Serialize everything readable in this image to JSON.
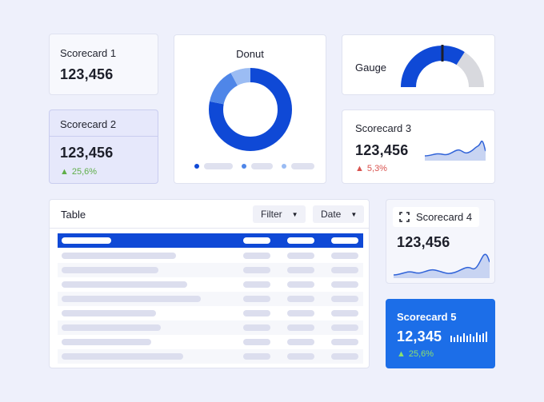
{
  "scorecard1": {
    "title": "Scorecard 1",
    "value": "123,456"
  },
  "scorecard2": {
    "title": "Scorecard 2",
    "value": "123,456",
    "delta": "25,6%",
    "delta_direction": "up"
  },
  "donut": {
    "title": "Donut",
    "segments": [
      {
        "value": 0.78,
        "color": "#0f49d6"
      },
      {
        "value": 0.14,
        "color": "#4f86e8"
      },
      {
        "value": 0.08,
        "color": "#9bbcf3"
      }
    ]
  },
  "gauge": {
    "title": "Gauge",
    "fill_fraction": 0.68,
    "fill_color": "#0f49d6",
    "track_color": "#d8d9de"
  },
  "scorecard3": {
    "title": "Scorecard 3",
    "value": "123,456",
    "delta": "5,3%",
    "delta_direction": "down"
  },
  "table": {
    "title": "Table",
    "filter_label": "Filter",
    "date_label": "Date",
    "header_color": "#0f49d6",
    "row_count": 8
  },
  "scorecard4": {
    "title": "Scorecard 4",
    "value": "123,456",
    "icon": "expand-icon"
  },
  "scorecard5": {
    "title": "Scorecard 5",
    "value": "12,345",
    "delta": "25,6%",
    "delta_direction": "up",
    "accent": "#1c6ee8"
  },
  "colors": {
    "primary": "#0f49d6",
    "secondary": "#4f86e8",
    "tertiary": "#9bbcf3",
    "positive": "#5fae49",
    "negative": "#d9534f"
  }
}
